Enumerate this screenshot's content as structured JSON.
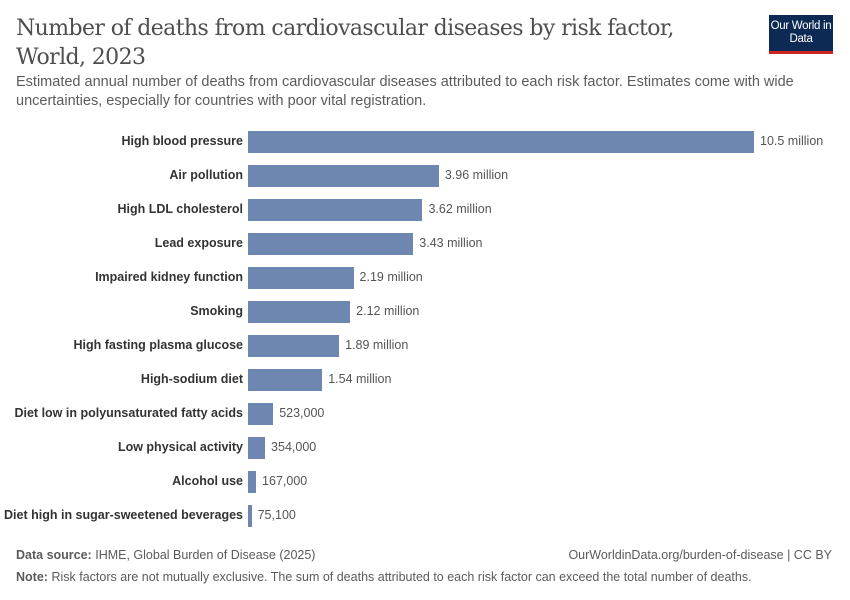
{
  "header": {
    "title": "Number of deaths from cardiovascular diseases by risk factor, World, 2023",
    "subtitle": "Estimated annual number of deaths from cardiovascular diseases attributed to each risk factor. Estimates come with wide uncertainties, especially for countries with poor vital registration.",
    "logo": "Our World in Data"
  },
  "chart_data": {
    "type": "bar",
    "orientation": "horizontal",
    "categories": [
      "High blood pressure",
      "Air pollution",
      "High LDL cholesterol",
      "Lead exposure",
      "Impaired kidney function",
      "Smoking",
      "High fasting plasma glucose",
      "High-sodium diet",
      "Diet low in polyunsaturated fatty acids",
      "Low physical activity",
      "Alcohol use",
      "Diet high in sugar-sweetened beverages"
    ],
    "values": [
      10500000,
      3960000,
      3620000,
      3430000,
      2190000,
      2120000,
      1890000,
      1540000,
      523000,
      354000,
      167000,
      75100
    ],
    "data_labels": [
      "10.5 million",
      "3.96 million",
      "3.62 million",
      "3.43 million",
      "2.19 million",
      "2.12 million",
      "1.89 million",
      "1.54 million",
      "523,000",
      "354,000",
      "167,000",
      "75,100"
    ],
    "bar_color": "#6d87b0",
    "grid": false
  },
  "footer": {
    "source_label": "Data source:",
    "source": "IHME, Global Burden of Disease (2025)",
    "url": "OurWorldinData.org/burden-of-disease | CC BY",
    "note_label": "Note:",
    "note": "Risk factors are not mutually exclusive. The sum of deaths attributed to each risk factor can exceed the total number of deaths."
  }
}
